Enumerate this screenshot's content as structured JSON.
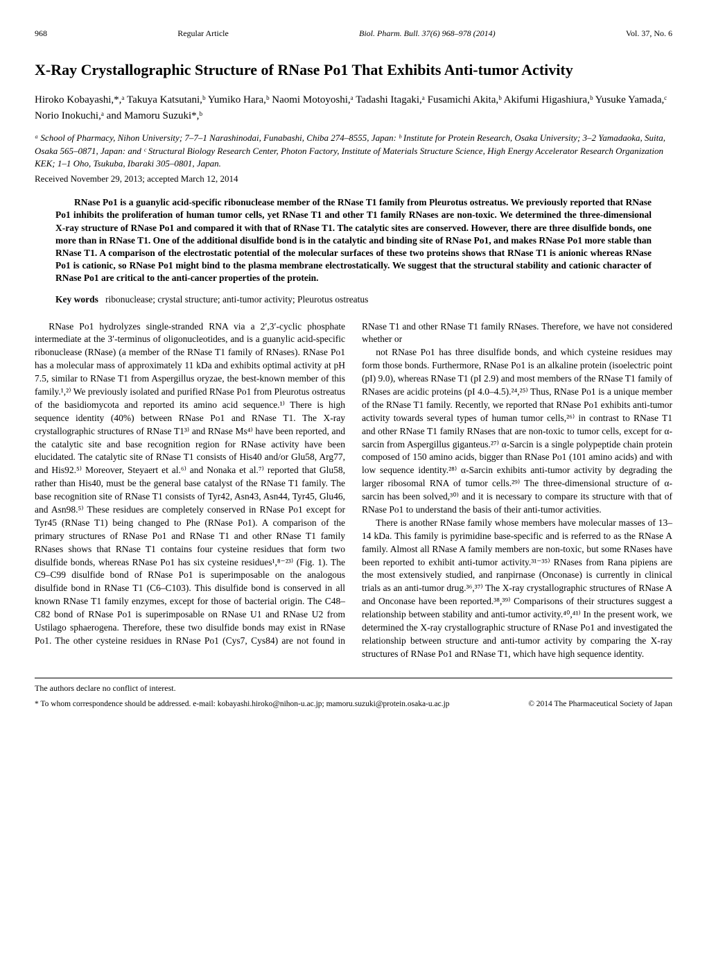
{
  "header": {
    "page_left": "968",
    "header_center_label": "Regular Article",
    "journal_ref": "Biol. Pharm. Bull. 37(6) 968–978 (2014)",
    "vol_right": "Vol. 37, No. 6"
  },
  "title": "X-Ray Crystallographic Structure of RNase Po1 That Exhibits Anti-tumor Activity",
  "authors_html": "Hiroko Kobayashi,*,ᵃ Takuya Katsutani,ᵇ Yumiko Hara,ᵇ Naomi Motoyoshi,ᵃ Tadashi Itagaki,ᵃ Fusamichi Akita,ᵇ Akifumi Higashiura,ᵇ Yusuke Yamada,ᶜ Norio Inokuchi,ᵃ and Mamoru Suzuki*,ᵇ",
  "affiliations": "ᵃ School of Pharmacy, Nihon University; 7–7–1 Narashinodai, Funabashi, Chiba 274–8555, Japan: ᵇ Institute for Protein Research, Osaka University; 3–2 Yamadaoka, Suita, Osaka 565–0871, Japan: and ᶜ Structural Biology Research Center, Photon Factory, Institute of Materials Structure Science, High Energy Accelerator Research Organization KEK; 1–1 Oho, Tsukuba, Ibaraki 305–0801, Japan.",
  "received": "Received November 29, 2013; accepted March 12, 2014",
  "abstract": "RNase Po1 is a guanylic acid-specific ribonuclease member of the RNase T1 family from Pleurotus ostreatus. We previously reported that RNase Po1 inhibits the proliferation of human tumor cells, yet RNase T1 and other T1 family RNases are non-toxic. We determined the three-dimensional X-ray structure of RNase Po1 and compared it with that of RNase T1. The catalytic sites are conserved. However, there are three disulfide bonds, one more than in RNase T1. One of the additional disulfide bond is in the catalytic and binding site of RNase Po1, and makes RNase Po1 more stable than RNase T1. A comparison of the electrostatic potential of the molecular surfaces of these two proteins shows that RNase T1 is anionic whereas RNase Po1 is cationic, so RNase Po1 might bind to the plasma membrane electrostatically. We suggest that the structural stability and cationic character of RNase Po1 are critical to the anti-cancer properties of the protein.",
  "keywords_label": "Key words",
  "keywords": "ribonuclease; crystal structure; anti-tumor activity; Pleurotus ostreatus",
  "body": {
    "p1": "RNase Po1 hydrolyzes single-stranded RNA via a 2′,3′-cyclic phosphate intermediate at the 3′-terminus of oligonucleotides, and is a guanylic acid-specific ribonuclease (RNase) (a member of the RNase T1 family of RNases). RNase Po1 has a molecular mass of approximately 11 kDa and exhibits optimal activity at pH 7.5, similar to RNase T1 from Aspergillus oryzae, the best-known member of this family.¹,²⁾ We previously isolated and purified RNase Po1 from Pleurotus ostreatus of the basidiomycota and reported its amino acid sequence.¹⁾ There is high sequence identity (40%) between RNase Po1 and RNase T1. The X-ray crystallographic structures of RNase T1³⁾ and RNase Ms⁴⁾ have been reported, and the catalytic site and base recognition region for RNase activity have been elucidated. The catalytic site of RNase T1 consists of His40 and/or Glu58, Arg77, and His92.⁵⁾ Moreover, Steyaert et al.⁶⁾ and Nonaka et al.⁷⁾ reported that Glu58, rather than His40, must be the general base catalyst of the RNase T1 family. The base recognition site of RNase T1 consists of Tyr42, Asn43, Asn44, Tyr45, Glu46, and Asn98.⁵⁾ These residues are completely conserved in RNase Po1 except for Tyr45 (RNase T1) being changed to Phe (RNase Po1). A comparison of the primary structures of RNase Po1 and RNase T1 and other RNase T1 family RNases shows that RNase T1 contains four cysteine residues that form two disulfide bonds, whereas RNase Po1 has six cysteine residues¹,⁸⁻²³⁾ (Fig. 1). The C9–C99 disulfide bond of RNase Po1 is superimposable on the analogous disulfide bond in RNase T1 (C6–C103). This disulfide bond is conserved in all known RNase T1 family enzymes, except for those of bacterial origin. The C48–C82 bond of RNase Po1 is superimposable on RNase U1 and RNase U2 from Ustilago sphaerogena. Therefore, these two disulfide bonds may exist in RNase Po1. The other cysteine residues in RNase Po1 (Cys7, Cys84) are not found in RNase T1 and other RNase T1 family RNases. Therefore, we have not considered whether or",
    "p2": "not RNase Po1 has three disulfide bonds, and which cysteine residues may form those bonds. Furthermore, RNase Po1 is an alkaline protein (isoelectric point (pI) 9.0), whereas RNase T1 (pI 2.9) and most members of the RNase T1 family of RNases are acidic proteins (pI 4.0–4.5).²⁴,²⁵⁾ Thus, RNase Po1 is a unique member of the RNase T1 family. Recently, we reported that RNase Po1 exhibits anti-tumor activity towards several types of human tumor cells,²⁶⁾ in contrast to RNase T1 and other RNase T1 family RNases that are non-toxic to tumor cells, except for α-sarcin from Aspergillus giganteus.²⁷⁾ α-Sarcin is a single polypeptide chain protein composed of 150 amino acids, bigger than RNase Po1 (101 amino acids) and with low sequence identity.²⁸⁾ α-Sarcin exhibits anti-tumor activity by degrading the larger ribosomal RNA of tumor cells.²⁹⁾ The three-dimensional structure of α-sarcin has been solved,³⁰⁾ and it is necessary to compare its structure with that of RNase Po1 to understand the basis of their anti-tumor activities.",
    "p3": "There is another RNase family whose members have molecular masses of 13–14 kDa. This family is pyrimidine base-specific and is referred to as the RNase A family. Almost all RNase A family members are non-toxic, but some RNases have been reported to exhibit anti-tumor activity.³¹⁻³⁵⁾ RNases from Rana pipiens are the most extensively studied, and ranpirnase (Onconase) is currently in clinical trials as an anti-tumor drug.³⁶,³⁷⁾ The X-ray crystallographic structures of RNase A and Onconase have been reported.³⁸,³⁹⁾ Comparisons of their structures suggest a relationship between stability and anti-tumor activity.⁴⁰,⁴¹⁾ In the present work, we determined the X-ray crystallographic structure of RNase Po1 and investigated the relationship between structure and anti-tumor activity by comparing the X-ray structures of RNase Po1 and RNase T1, which have high sequence identity."
  },
  "footer": {
    "conflict": "The authors declare no conflict of interest.",
    "correspondence": "* To whom correspondence should be addressed.   e-mail: kobayashi.hiroko@nihon-u.ac.jp; mamoru.suzuki@protein.osaka-u.ac.jp",
    "copyright": "© 2014 The Pharmaceutical Society of Japan"
  }
}
